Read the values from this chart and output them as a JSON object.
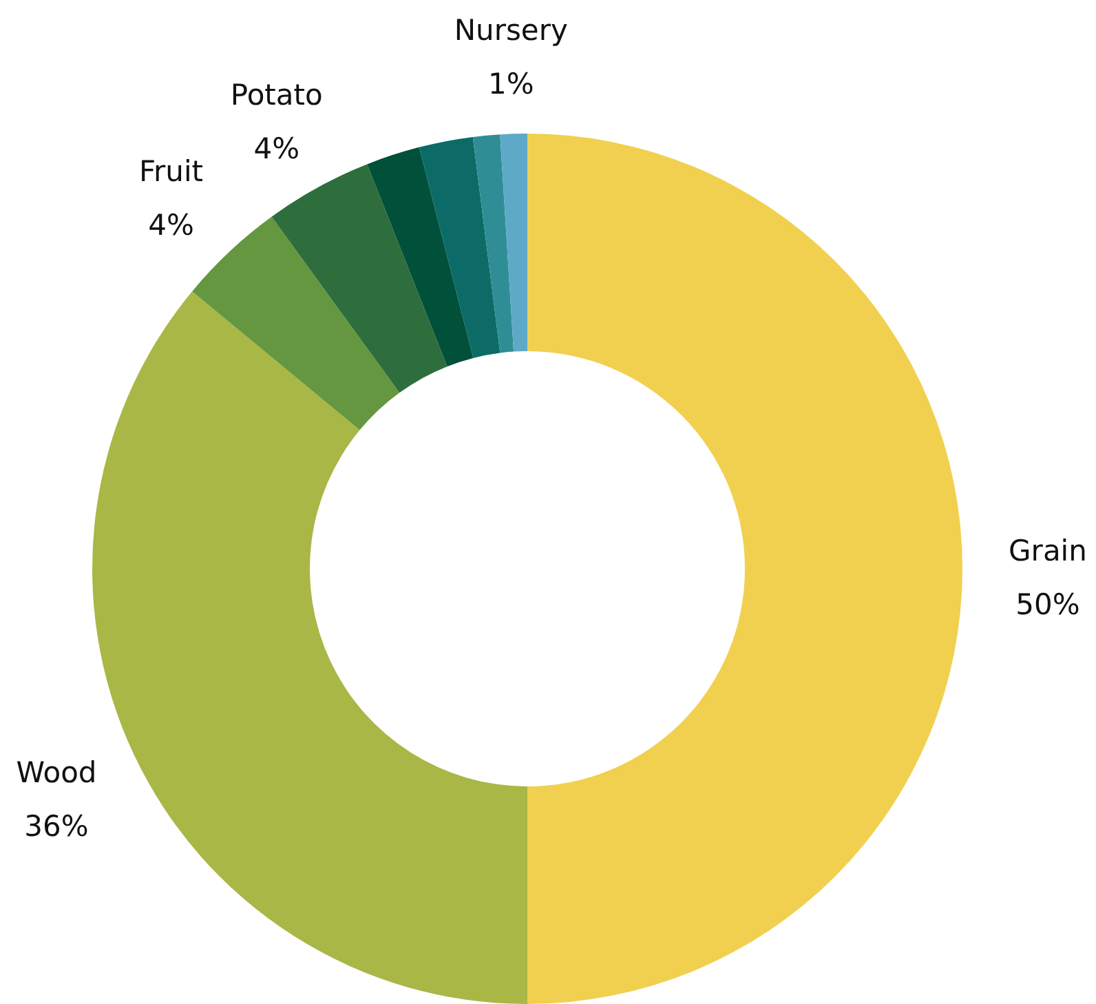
{
  "chart_data": {
    "type": "donut",
    "categories": [
      "Grain",
      "Wood",
      "Fruit",
      "Potato",
      null,
      null,
      null,
      "Nursery"
    ],
    "values": [
      50,
      36,
      4,
      4,
      2,
      2,
      1,
      1
    ],
    "colors": [
      "#f2d04f",
      "#a9b746",
      "#659741",
      "#2e6e3d",
      "#00503a",
      "#0c6b67",
      "#2f8e95",
      "#5ea9c8"
    ],
    "value_labels": [
      "50%",
      "36%",
      "4%",
      "4%",
      null,
      null,
      null,
      "1%"
    ]
  }
}
